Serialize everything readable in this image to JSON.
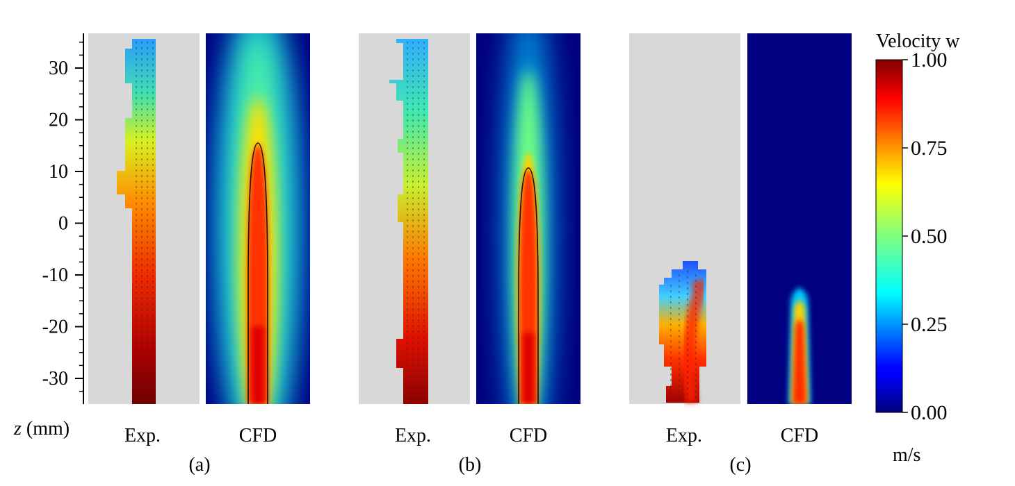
{
  "chart_data": {
    "type": "heatmap",
    "panels": [
      {
        "label": "(a)",
        "exp_label": "Exp.",
        "cfd_label": "CFD",
        "cfd_contour_tip_z": 16,
        "jet_tip_z": 36
      },
      {
        "label": "(b)",
        "exp_label": "Exp.",
        "cfd_label": "CFD",
        "cfd_contour_tip_z": 11,
        "jet_tip_z": 36
      },
      {
        "label": "(c)",
        "exp_label": "Exp.",
        "cfd_label": "CFD",
        "cfd_contour_tip_z": -16,
        "jet_tip_z": -12
      }
    ],
    "y_axis": {
      "label_italic": "z",
      "label_rest": " (mm)",
      "ylim": [
        -35,
        37
      ],
      "ticks": [
        30,
        20,
        10,
        0,
        -10,
        -20,
        -30
      ],
      "tick_labels": [
        "30",
        "20",
        "10",
        "0",
        "-10",
        "-20",
        "-30"
      ]
    },
    "colorbar": {
      "title": "Velocity w",
      "unit": "m/s",
      "range": [
        0,
        1
      ],
      "ticks": [
        1.0,
        0.75,
        0.5,
        0.25,
        0.0
      ],
      "tick_labels": [
        "1.00",
        "0.75",
        "0.50",
        "0.25",
        "0.00"
      ],
      "colormap": "jet"
    }
  }
}
